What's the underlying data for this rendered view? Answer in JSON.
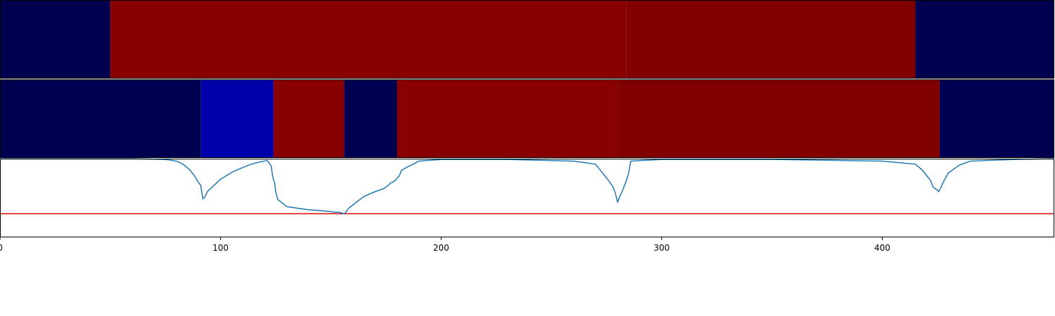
{
  "chart_data": {
    "type": "heatmap",
    "x_range": [
      0,
      478
    ],
    "x_ticks": [
      0,
      100,
      200,
      300,
      400
    ],
    "x_tick_labels": [
      "0",
      "100",
      "200",
      "300",
      "400"
    ],
    "grid": false,
    "rows": [
      {
        "segments": [
          {
            "start": 0,
            "end": 50,
            "color": "#000050"
          },
          {
            "start": 50,
            "end": 284,
            "color": "#880000"
          },
          {
            "start": 284,
            "end": 415,
            "color": "#800000"
          },
          {
            "start": 415,
            "end": 478,
            "color": "#000050"
          }
        ]
      },
      {
        "segments": [
          {
            "start": 0,
            "end": 91,
            "color": "#000050"
          },
          {
            "start": 91,
            "end": 124,
            "color": "#0000aa"
          },
          {
            "start": 124,
            "end": 156,
            "color": "#880000"
          },
          {
            "start": 156,
            "end": 180,
            "color": "#000050"
          },
          {
            "start": 180,
            "end": 280,
            "color": "#880000"
          },
          {
            "start": 280,
            "end": 426,
            "color": "#800000"
          },
          {
            "start": 426,
            "end": 478,
            "color": "#000050"
          }
        ]
      }
    ],
    "line_panel": {
      "ylim": [
        0,
        1
      ],
      "threshold": {
        "value": 0.3,
        "color": "#dd0000"
      },
      "series": {
        "color": "#1f77b4",
        "x": [
          0,
          60,
          75,
          80,
          83,
          86,
          88,
          90,
          91,
          92,
          93,
          94,
          100,
          106,
          112,
          114,
          118,
          120,
          121,
          122,
          123,
          123.5,
          124,
          124.5,
          125,
          126,
          130,
          140,
          145,
          149,
          152,
          154,
          155,
          156,
          156.5,
          157,
          158,
          165,
          170,
          174,
          176,
          177,
          178,
          179,
          180,
          181,
          182,
          185,
          188,
          190,
          200,
          230,
          260,
          270,
          272,
          274,
          276,
          278,
          279,
          280,
          281,
          282,
          283,
          284,
          285,
          286,
          300,
          350,
          400,
          415,
          418,
          420,
          422,
          423,
          424,
          425,
          425.5,
          426,
          427,
          428,
          430,
          435,
          440,
          460,
          478
        ],
        "y": [
          1.0,
          1.0,
          0.99,
          0.97,
          0.93,
          0.86,
          0.79,
          0.7,
          0.66,
          0.49,
          0.52,
          0.58,
          0.74,
          0.84,
          0.91,
          0.93,
          0.96,
          0.97,
          0.98,
          0.95,
          0.9,
          0.8,
          0.73,
          0.7,
          0.58,
          0.48,
          0.39,
          0.35,
          0.34,
          0.33,
          0.32,
          0.32,
          0.31,
          0.3,
          0.31,
          0.33,
          0.37,
          0.52,
          0.58,
          0.62,
          0.66,
          0.69,
          0.7,
          0.72,
          0.75,
          0.78,
          0.85,
          0.9,
          0.94,
          0.97,
          0.99,
          0.99,
          0.97,
          0.93,
          0.86,
          0.79,
          0.72,
          0.64,
          0.56,
          0.45,
          0.52,
          0.58,
          0.65,
          0.72,
          0.82,
          0.97,
          0.99,
          0.99,
          0.97,
          0.93,
          0.86,
          0.79,
          0.72,
          0.64,
          0.62,
          0.6,
          0.58,
          0.6,
          0.66,
          0.72,
          0.82,
          0.92,
          0.97,
          0.99,
          1.0
        ]
      }
    }
  }
}
